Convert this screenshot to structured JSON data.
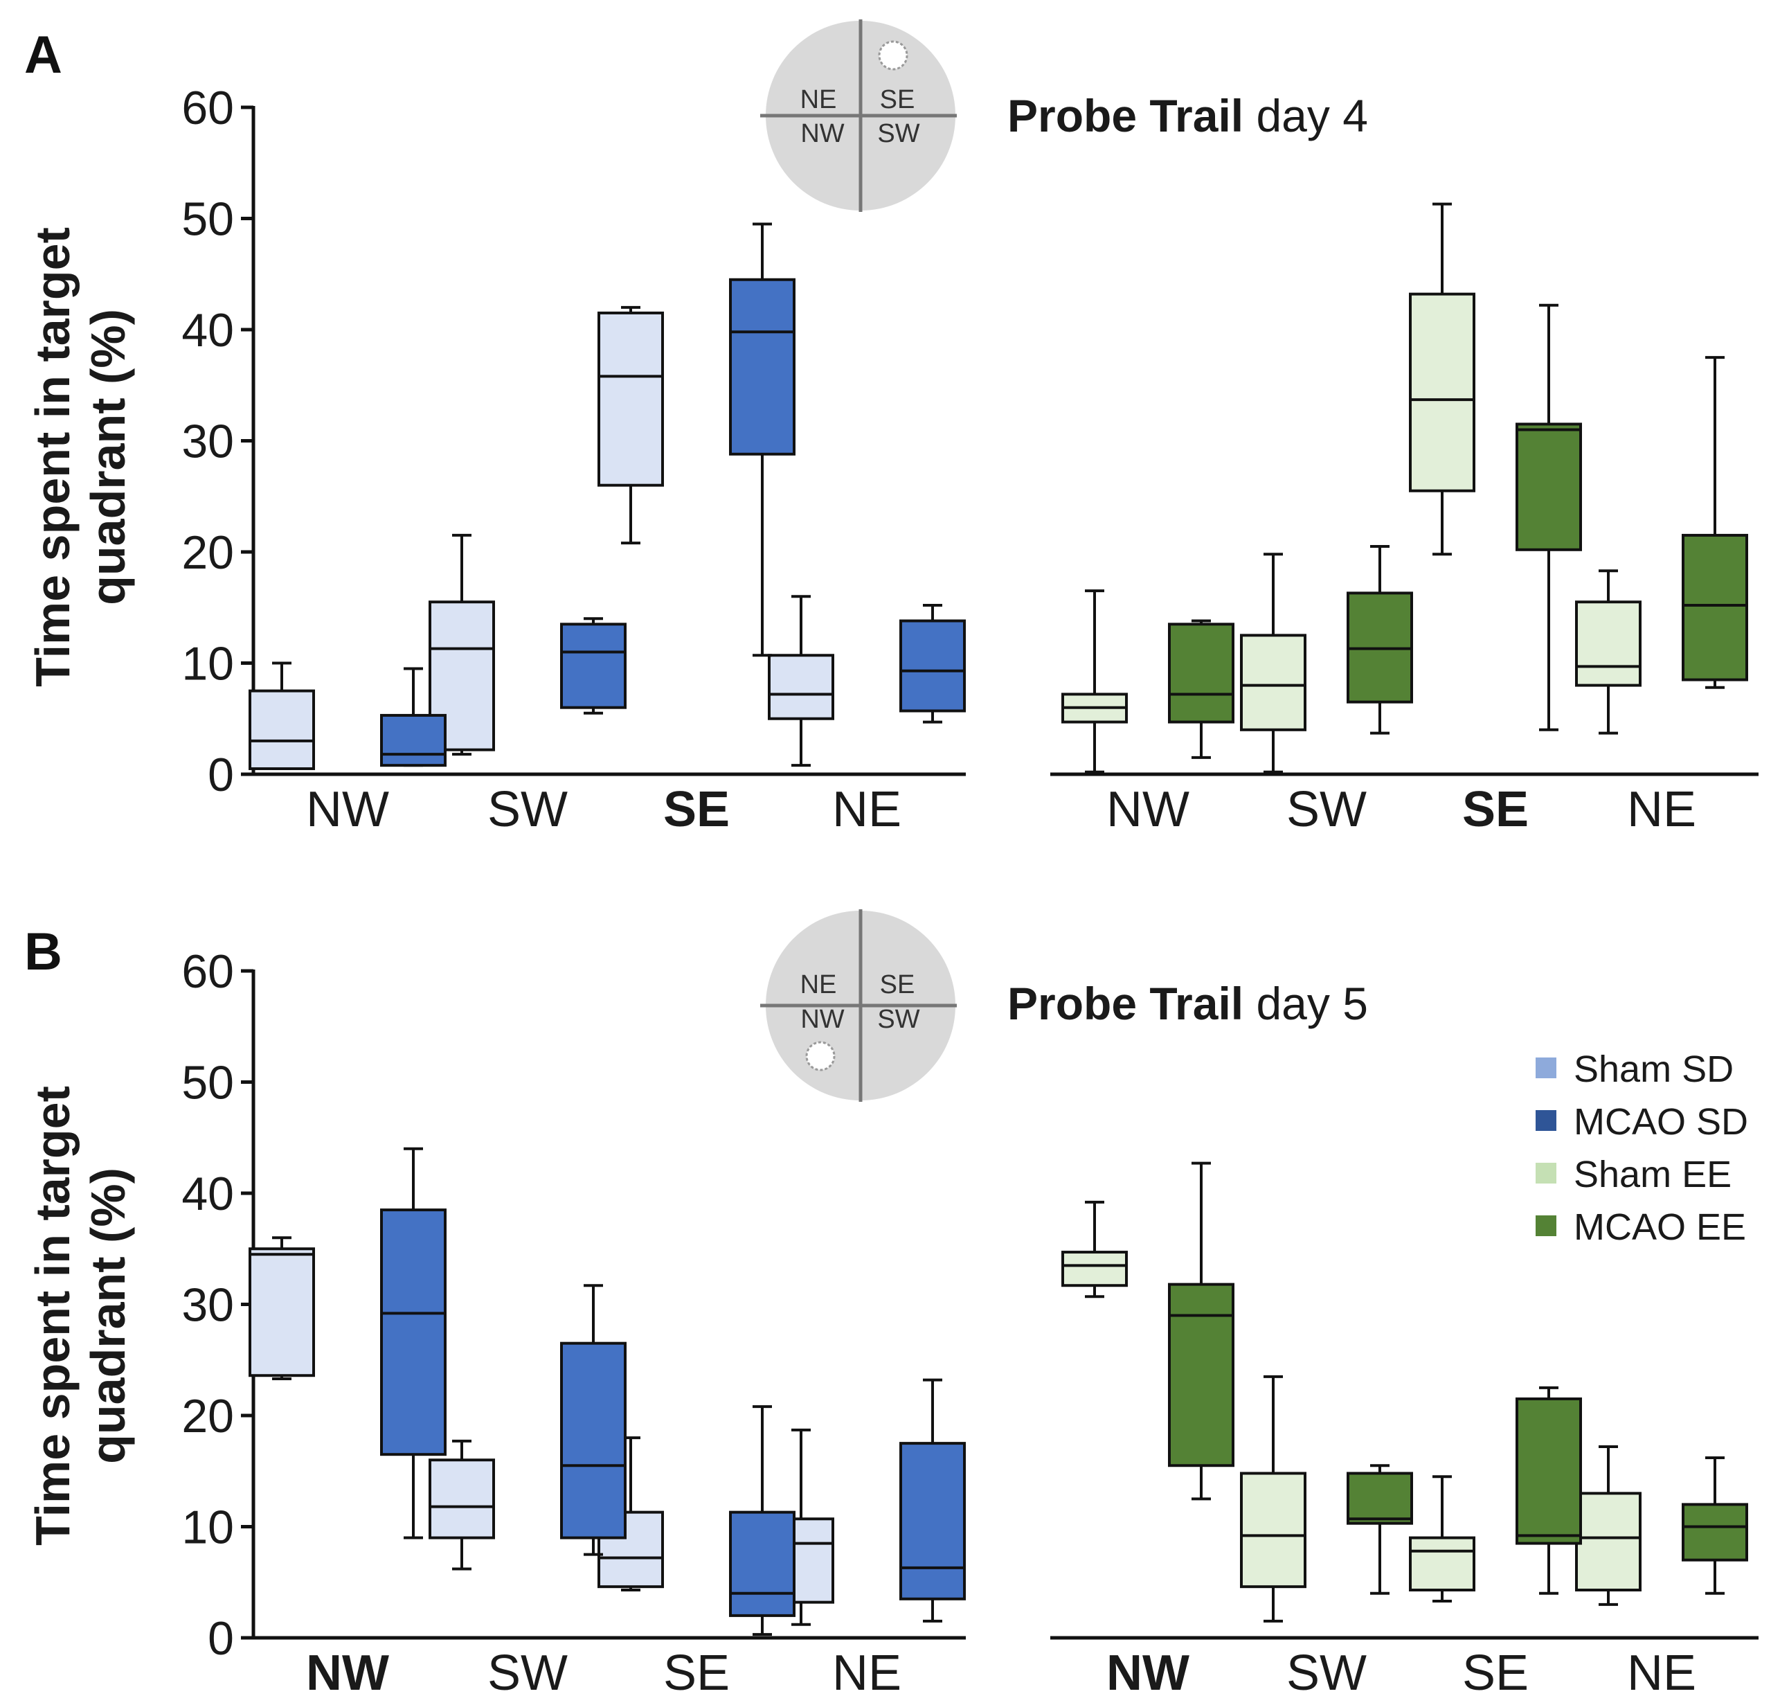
{
  "colors": {
    "sham_sd": "#dae3f4",
    "mcao_sd": "#4472c4",
    "sham_ee": "#e2efd9",
    "mcao_ee": "#548235",
    "legend_sham_sd": "#8eaadb",
    "legend_mcao_sd": "#2f5597",
    "legend_sham_ee": "#c5e0b4",
    "legend_mcao_ee": "#548235",
    "disc": "#d9d9d9"
  },
  "legend": [
    "Sham SD",
    "MCAO SD",
    "Sham EE",
    "MCAO EE"
  ],
  "quadrant_labels": {
    "ne": "NE",
    "se": "SE",
    "nw": "NW",
    "sw": "SW"
  },
  "chart_data": [
    {
      "type": "boxplot",
      "panel_label": "A",
      "title_bold": "Probe Trail",
      "title_rest": " day 4",
      "ylabel_line1": "Time spent in target",
      "ylabel_line2": "quadrant (%)",
      "ylim": [
        0,
        60
      ],
      "yticks": [
        0,
        10,
        20,
        30,
        40,
        50,
        60
      ],
      "categories": [
        "NW",
        "SW",
        "SE",
        "NE"
      ],
      "target_quadrant": "SE",
      "platform_marker_quadrant": "SE",
      "groups": [
        {
          "name": "Sham SD",
          "values": [
            {
              "min": 0.5,
              "q1": 0.5,
              "median": 3.0,
              "q3": 7.5,
              "max": 10.0
            },
            {
              "min": 1.8,
              "q1": 2.2,
              "median": 11.3,
              "q3": 15.5,
              "max": 21.5
            },
            {
              "min": 20.8,
              "q1": 26.0,
              "median": 35.8,
              "q3": 41.5,
              "max": 42.0
            },
            {
              "min": 0.8,
              "q1": 5.0,
              "median": 7.2,
              "q3": 10.7,
              "max": 16.0
            }
          ]
        },
        {
          "name": "MCAO SD",
          "values": [
            {
              "min": 0.8,
              "q1": 0.8,
              "median": 1.8,
              "q3": 5.3,
              "max": 9.5
            },
            {
              "min": 5.5,
              "q1": 6.0,
              "median": 11.0,
              "q3": 13.5,
              "max": 14.0
            },
            {
              "min": 10.7,
              "q1": 28.8,
              "median": 39.8,
              "q3": 44.5,
              "max": 49.5
            },
            {
              "min": 4.7,
              "q1": 5.7,
              "median": 9.3,
              "q3": 13.8,
              "max": 15.2
            }
          ]
        },
        {
          "name": "Sham EE",
          "values": [
            {
              "min": 0.2,
              "q1": 4.7,
              "median": 6.0,
              "q3": 7.2,
              "max": 16.5
            },
            {
              "min": 0.2,
              "q1": 4.0,
              "median": 8.0,
              "q3": 12.5,
              "max": 19.8
            },
            {
              "min": 19.8,
              "q1": 25.5,
              "median": 33.7,
              "q3": 43.2,
              "max": 51.3
            },
            {
              "min": 3.7,
              "q1": 8.0,
              "median": 9.7,
              "q3": 15.5,
              "max": 18.3
            }
          ]
        },
        {
          "name": "MCAO EE",
          "values": [
            {
              "min": 1.5,
              "q1": 4.7,
              "median": 7.2,
              "q3": 13.5,
              "max": 13.8
            },
            {
              "min": 3.7,
              "q1": 6.5,
              "median": 11.3,
              "q3": 16.3,
              "max": 20.5
            },
            {
              "min": 4.0,
              "q1": 20.2,
              "median": 31.0,
              "q3": 31.5,
              "max": 42.2
            },
            {
              "min": 7.8,
              "q1": 8.5,
              "median": 15.2,
              "q3": 21.5,
              "max": 37.5
            }
          ]
        }
      ]
    },
    {
      "type": "boxplot",
      "panel_label": "B",
      "title_bold": "Probe Trail",
      "title_rest": " day 5",
      "ylabel_line1": "Time spent in target",
      "ylabel_line2": "quadrant (%)",
      "ylim": [
        0,
        60
      ],
      "yticks": [
        0,
        10,
        20,
        30,
        40,
        50,
        60
      ],
      "categories": [
        "NW",
        "SW",
        "SE",
        "NE"
      ],
      "target_quadrant": "NW",
      "platform_marker_quadrant": "NW",
      "groups": [
        {
          "name": "Sham SD",
          "values": [
            {
              "min": 23.3,
              "q1": 23.6,
              "median": 34.5,
              "q3": 35.0,
              "max": 36.0
            },
            {
              "min": 6.2,
              "q1": 9.0,
              "median": 11.8,
              "q3": 16.0,
              "max": 17.7
            },
            {
              "min": 4.3,
              "q1": 4.6,
              "median": 7.2,
              "q3": 11.3,
              "max": 18.0
            },
            {
              "min": 1.2,
              "q1": 3.2,
              "median": 8.5,
              "q3": 10.7,
              "max": 18.7
            }
          ]
        },
        {
          "name": "MCAO SD",
          "values": [
            {
              "min": 9.0,
              "q1": 16.5,
              "median": 29.2,
              "q3": 38.5,
              "max": 44.0
            },
            {
              "min": 7.5,
              "q1": 9.0,
              "median": 15.5,
              "q3": 26.5,
              "max": 31.7
            },
            {
              "min": 0.3,
              "q1": 2.0,
              "median": 4.0,
              "q3": 11.3,
              "max": 20.8
            },
            {
              "min": 1.5,
              "q1": 3.5,
              "median": 6.3,
              "q3": 17.5,
              "max": 23.2
            }
          ]
        },
        {
          "name": "Sham EE",
          "values": [
            {
              "min": 30.7,
              "q1": 31.7,
              "median": 33.5,
              "q3": 34.7,
              "max": 39.2
            },
            {
              "min": 1.5,
              "q1": 4.6,
              "median": 9.2,
              "q3": 14.8,
              "max": 23.5
            },
            {
              "min": 3.3,
              "q1": 4.3,
              "median": 7.8,
              "q3": 9.0,
              "max": 14.5
            },
            {
              "min": 3.0,
              "q1": 4.3,
              "median": 9.0,
              "q3": 13.0,
              "max": 17.2
            }
          ]
        },
        {
          "name": "MCAO EE",
          "values": [
            {
              "min": 12.5,
              "q1": 15.5,
              "median": 29.0,
              "q3": 31.8,
              "max": 42.7
            },
            {
              "min": 4.0,
              "q1": 10.3,
              "median": 10.7,
              "q3": 14.8,
              "max": 15.5
            },
            {
              "min": 4.0,
              "q1": 8.5,
              "median": 9.2,
              "q3": 21.5,
              "max": 22.5
            },
            {
              "min": 4.0,
              "q1": 7.0,
              "median": 10.0,
              "q3": 12.0,
              "max": 16.2
            }
          ]
        }
      ]
    }
  ]
}
